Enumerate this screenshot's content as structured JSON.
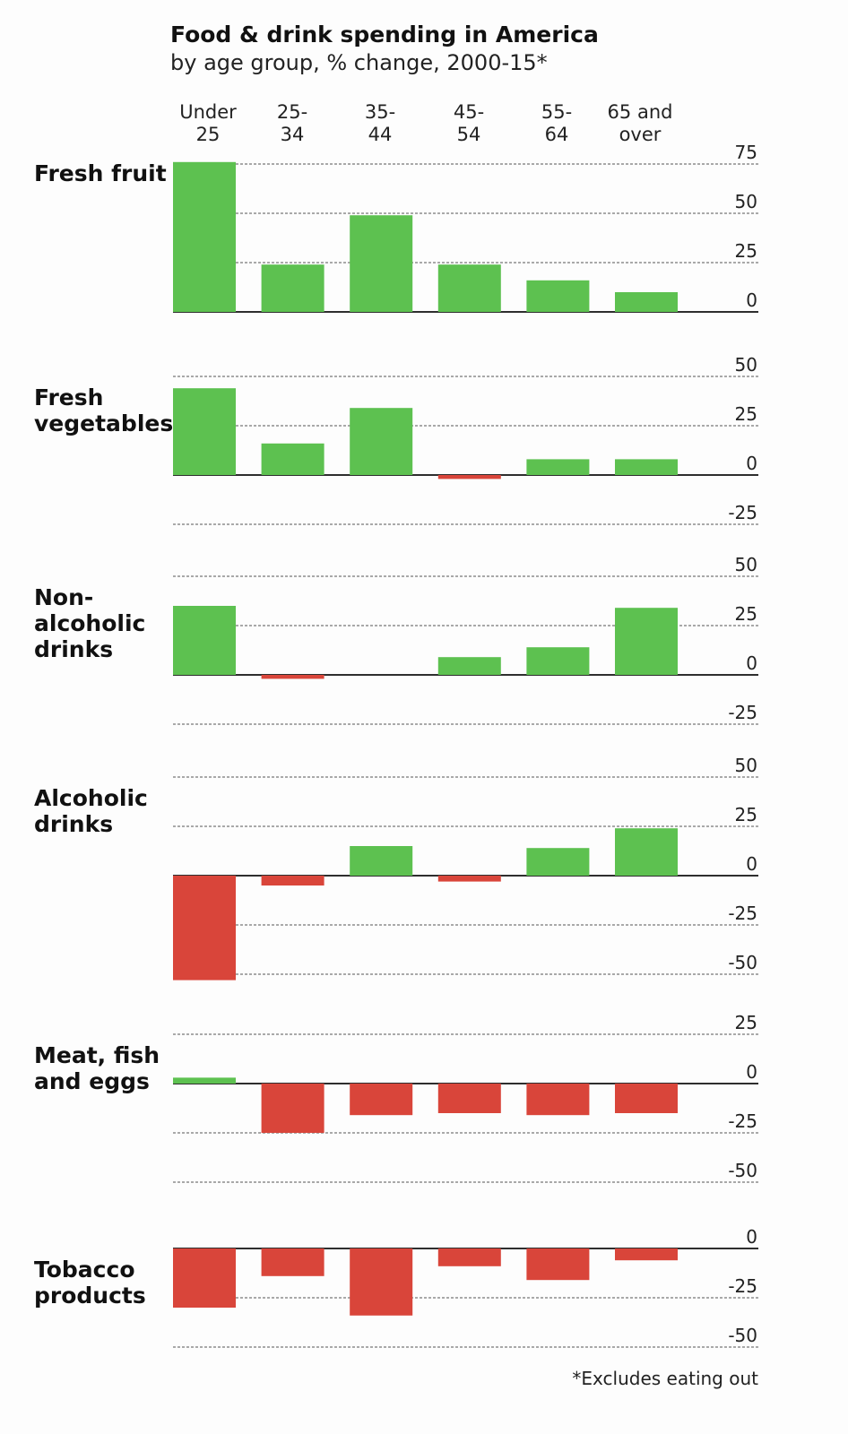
{
  "chart_data": {
    "type": "bar",
    "title": "Food & drink spending in America",
    "subtitle": "by age group, % change, 2000-15*",
    "footnote": "*Excludes eating out",
    "categories": [
      "Under 25",
      "25-34",
      "35-44",
      "45-54",
      "55-64",
      "65 and over"
    ],
    "category_lines": [
      [
        "Under",
        "25"
      ],
      [
        "25-",
        "34"
      ],
      [
        "35-",
        "44"
      ],
      [
        "45-",
        "54"
      ],
      [
        "55-",
        "64"
      ],
      [
        "65 and",
        "over"
      ]
    ],
    "grid": true,
    "colors": {
      "positive": "#5dc150",
      "negative": "#d9453a"
    },
    "panels": [
      {
        "name": "Fresh fruit",
        "label_lines": [
          "Fresh fruit"
        ],
        "ylim": [
          0,
          75
        ],
        "ticks": [
          0,
          25,
          50,
          75
        ],
        "values": [
          76,
          24,
          49,
          24,
          16,
          10
        ]
      },
      {
        "name": "Fresh vegetables",
        "label_lines": [
          "Fresh",
          "vegetables"
        ],
        "ylim": [
          -25,
          50
        ],
        "ticks": [
          -25,
          0,
          25,
          50
        ],
        "values": [
          44,
          16,
          34,
          -2,
          8,
          8
        ]
      },
      {
        "name": "Non-alcoholic drinks",
        "label_lines": [
          "Non-",
          "alcoholic",
          "drinks"
        ],
        "ylim": [
          -25,
          50
        ],
        "ticks": [
          -25,
          0,
          25,
          50
        ],
        "values": [
          35,
          -2,
          0,
          9,
          14,
          34
        ]
      },
      {
        "name": "Alcoholic drinks",
        "label_lines": [
          "Alcoholic",
          "drinks"
        ],
        "ylim": [
          -50,
          50
        ],
        "ticks": [
          -50,
          -25,
          0,
          25,
          50
        ],
        "values": [
          -53,
          -5,
          15,
          -3,
          14,
          24
        ]
      },
      {
        "name": "Meat, fish and eggs",
        "label_lines": [
          "Meat, fish",
          "and eggs"
        ],
        "ylim": [
          -50,
          25
        ],
        "ticks": [
          -50,
          -25,
          0,
          25
        ],
        "values": [
          3,
          -25,
          -16,
          -15,
          -16,
          -15
        ]
      },
      {
        "name": "Tobacco products",
        "label_lines": [
          "Tobacco",
          "products"
        ],
        "ylim": [
          -50,
          0
        ],
        "ticks": [
          -50,
          -25,
          0
        ],
        "values": [
          -30,
          -14,
          -34,
          -9,
          -16,
          -6
        ]
      }
    ]
  }
}
